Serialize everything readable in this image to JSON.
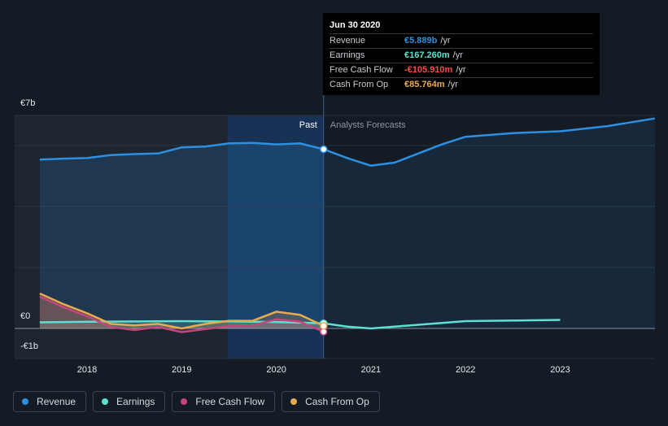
{
  "chart_data": {
    "type": "line",
    "x_ticks": [
      "2018",
      "2019",
      "2020",
      "2021",
      "2022",
      "2023"
    ],
    "y_ticks": [
      "€7b",
      "€0",
      "-€1b"
    ],
    "ylim": [
      -1,
      7
    ],
    "divider_labels": {
      "past": "Past",
      "forecast": "Analysts Forecasts"
    },
    "series": [
      {
        "name": "Revenue",
        "color": "#2d8fe0",
        "points": [
          [
            2017.5,
            5.55
          ],
          [
            2017.75,
            5.58
          ],
          [
            2018.0,
            5.6
          ],
          [
            2018.25,
            5.7
          ],
          [
            2018.5,
            5.73
          ],
          [
            2018.75,
            5.75
          ],
          [
            2019.0,
            5.95
          ],
          [
            2019.25,
            5.98
          ],
          [
            2019.5,
            6.08
          ],
          [
            2019.75,
            6.1
          ],
          [
            2020.0,
            6.05
          ],
          [
            2020.25,
            6.08
          ],
          [
            2020.5,
            5.889
          ]
        ],
        "forecast": [
          [
            2020.5,
            5.889
          ],
          [
            2020.75,
            5.6
          ],
          [
            2021.0,
            5.35
          ],
          [
            2021.25,
            5.45
          ],
          [
            2021.5,
            5.75
          ],
          [
            2021.75,
            6.05
          ],
          [
            2022.0,
            6.3
          ],
          [
            2022.5,
            6.42
          ],
          [
            2023.0,
            6.48
          ],
          [
            2023.5,
            6.65
          ],
          [
            2024.0,
            6.9
          ]
        ]
      },
      {
        "name": "Earnings",
        "color": "#5ee0d0",
        "points": [
          [
            2017.5,
            0.2
          ],
          [
            2018.0,
            0.22
          ],
          [
            2018.5,
            0.23
          ],
          [
            2019.0,
            0.24
          ],
          [
            2019.5,
            0.23
          ],
          [
            2020.0,
            0.21
          ],
          [
            2020.5,
            0.167
          ]
        ],
        "forecast": [
          [
            2020.5,
            0.167
          ],
          [
            2020.75,
            0.06
          ],
          [
            2021.0,
            0.0
          ],
          [
            2021.5,
            0.12
          ],
          [
            2022.0,
            0.24
          ],
          [
            2022.5,
            0.26
          ],
          [
            2023.0,
            0.28
          ]
        ]
      },
      {
        "name": "Free Cash Flow",
        "color": "#c5467f",
        "points": [
          [
            2017.5,
            1.05
          ],
          [
            2017.75,
            0.7
          ],
          [
            2018.0,
            0.4
          ],
          [
            2018.25,
            0.05
          ],
          [
            2018.5,
            -0.05
          ],
          [
            2018.75,
            0.05
          ],
          [
            2019.0,
            -0.12
          ],
          [
            2019.25,
            -0.02
          ],
          [
            2019.5,
            0.08
          ],
          [
            2019.75,
            0.1
          ],
          [
            2020.0,
            0.3
          ],
          [
            2020.25,
            0.22
          ],
          [
            2020.5,
            -0.106
          ]
        ]
      },
      {
        "name": "Cash From Op",
        "color": "#e8a951",
        "points": [
          [
            2017.5,
            1.15
          ],
          [
            2017.75,
            0.8
          ],
          [
            2018.0,
            0.5
          ],
          [
            2018.25,
            0.15
          ],
          [
            2018.5,
            0.1
          ],
          [
            2018.75,
            0.15
          ],
          [
            2019.0,
            0.0
          ],
          [
            2019.25,
            0.15
          ],
          [
            2019.5,
            0.25
          ],
          [
            2019.75,
            0.25
          ],
          [
            2020.0,
            0.55
          ],
          [
            2020.25,
            0.45
          ],
          [
            2020.5,
            0.086
          ]
        ]
      }
    ]
  },
  "tooltip": {
    "date": "Jun 30 2020",
    "rows": [
      {
        "label": "Revenue",
        "value": "€5.889b",
        "unit": "/yr",
        "color": "#2d8fe0"
      },
      {
        "label": "Earnings",
        "value": "€167.260m",
        "unit": "/yr",
        "color": "#5ee0d0"
      },
      {
        "label": "Free Cash Flow",
        "value": "-€105.910m",
        "unit": "/yr",
        "color": "#ff4b4b"
      },
      {
        "label": "Cash From Op",
        "value": "€85.764m",
        "unit": "/yr",
        "color": "#e8a951"
      }
    ]
  },
  "legend": [
    {
      "label": "Revenue",
      "color": "#2d8fe0"
    },
    {
      "label": "Earnings",
      "color": "#5ee0d0"
    },
    {
      "label": "Free Cash Flow",
      "color": "#c5467f"
    },
    {
      "label": "Cash From Op",
      "color": "#e8a951"
    }
  ]
}
